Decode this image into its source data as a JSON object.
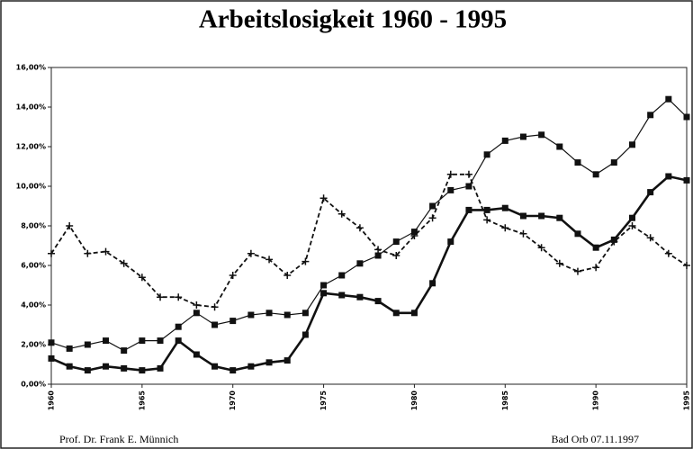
{
  "chart_data": {
    "type": "line",
    "title": "Arbeitslosigkeit 1960 - 1995",
    "footer_left": "Prof. Dr. Frank E. Münnich",
    "footer_right": "Bad Orb 07.11.1997",
    "x": [
      1960,
      1961,
      1962,
      1963,
      1964,
      1965,
      1966,
      1967,
      1968,
      1969,
      1970,
      1971,
      1972,
      1973,
      1974,
      1975,
      1976,
      1977,
      1978,
      1979,
      1980,
      1981,
      1982,
      1983,
      1984,
      1985,
      1986,
      1987,
      1988,
      1989,
      1990,
      1991,
      1992,
      1993,
      1994,
      1995
    ],
    "xlim": [
      1960,
      1995
    ],
    "xticks": [
      1960,
      1965,
      1970,
      1975,
      1980,
      1985,
      1990,
      1995
    ],
    "ylim": [
      0,
      16
    ],
    "yticks": [
      {
        "value": 0,
        "label": "0,00%"
      },
      {
        "value": 2,
        "label": "2,00%"
      },
      {
        "value": 4,
        "label": "4,00%"
      },
      {
        "value": 6,
        "label": "6,00%"
      },
      {
        "value": 8,
        "label": "8,00%"
      },
      {
        "value": 10,
        "label": "10,00%"
      },
      {
        "value": 12,
        "label": "12,00%"
      },
      {
        "value": 14,
        "label": "14,00%"
      },
      {
        "value": 16,
        "label": "16,00%"
      }
    ],
    "series": [
      {
        "color": "#111111",
        "style": "thin",
        "marker": "square",
        "values": [
          2.1,
          1.8,
          2.0,
          2.2,
          1.7,
          2.2,
          2.2,
          2.9,
          3.6,
          3.0,
          3.2,
          3.5,
          3.6,
          3.5,
          3.6,
          5.0,
          5.5,
          6.1,
          6.5,
          7.2,
          7.7,
          9.0,
          9.8,
          10.0,
          11.6,
          12.3,
          12.5,
          12.6,
          12.0,
          11.2,
          10.6,
          11.2,
          12.1,
          13.6,
          14.4,
          13.5
        ]
      },
      {
        "color": "#111111",
        "style": "thick",
        "marker": "square",
        "values": [
          1.3,
          0.9,
          0.7,
          0.9,
          0.8,
          0.7,
          0.8,
          2.2,
          1.5,
          0.9,
          0.7,
          0.9,
          1.1,
          1.2,
          2.5,
          4.6,
          4.5,
          4.4,
          4.2,
          3.6,
          3.6,
          5.1,
          7.2,
          8.8,
          8.8,
          8.9,
          8.5,
          8.5,
          8.4,
          7.6,
          6.9,
          7.3,
          8.4,
          9.7,
          10.5,
          10.3
        ]
      },
      {
        "color": "#111111",
        "style": "dashed",
        "marker": "plus",
        "values": [
          6.6,
          8.0,
          6.6,
          6.7,
          6.1,
          5.4,
          4.4,
          4.4,
          4.0,
          3.9,
          5.5,
          6.6,
          6.3,
          5.5,
          6.2,
          9.4,
          8.6,
          7.9,
          6.8,
          6.5,
          7.5,
          8.4,
          10.6,
          10.6,
          8.3,
          7.9,
          7.6,
          6.9,
          6.1,
          5.7,
          5.9,
          7.2,
          8.0,
          7.4,
          6.6,
          6.0
        ]
      }
    ]
  }
}
